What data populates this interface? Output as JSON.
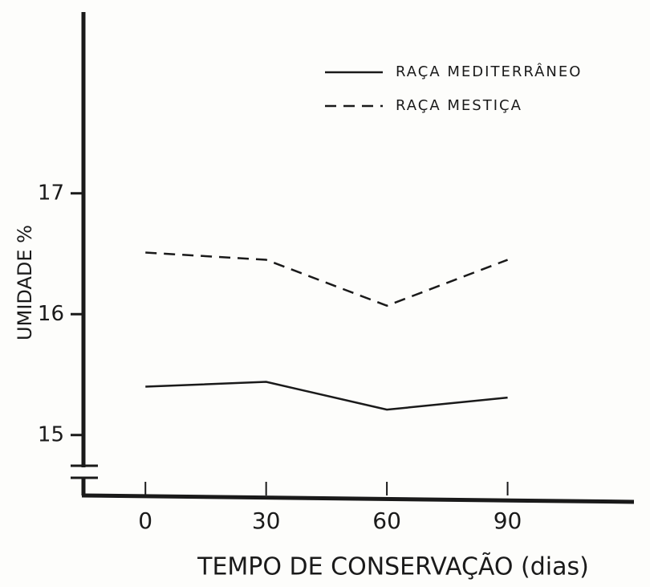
{
  "chart_data": {
    "type": "line",
    "x_label": "TEMPO DE CONSERVAÇÃO (dias)",
    "y_label": "UMIDADE %",
    "x": [
      0,
      30,
      60,
      90
    ],
    "series": [
      {
        "name": "RAÇA MEDITERRÂNEO",
        "color": "#1a1a1a",
        "style": "solid",
        "values": [
          15.4,
          15.44,
          15.21,
          15.31
        ]
      },
      {
        "name": "RAÇA MESTIÇA",
        "color": "#1a1a1a",
        "style": "dashed",
        "values": [
          16.51,
          16.45,
          16.07,
          16.45
        ]
      }
    ],
    "xlim": [
      -15,
      120
    ],
    "xticks": [
      0,
      30,
      60,
      90
    ],
    "ylim": [
      14.5,
      18.5
    ],
    "yticks": [
      15,
      16,
      17
    ],
    "y_axis_break": true,
    "legend": "top-right",
    "grid": false
  }
}
